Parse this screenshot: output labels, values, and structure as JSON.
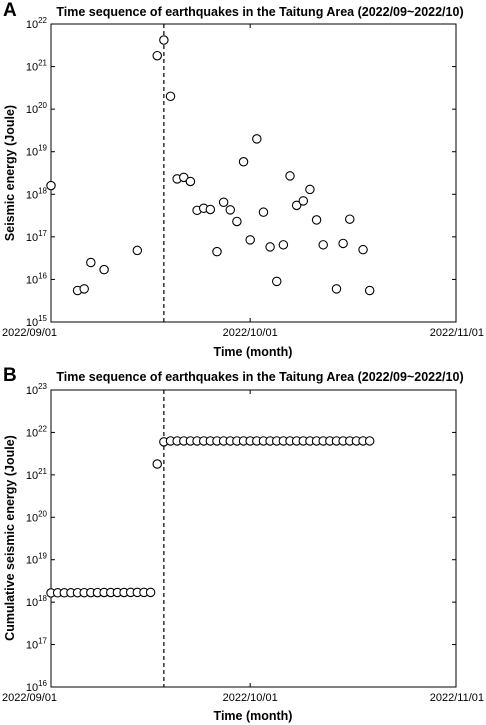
{
  "chart_data": [
    {
      "panel_label": "A",
      "type": "scatter",
      "title": "Time sequence of earthquakes in the Taitung Area (2022/09~2022/10)",
      "xlabel": "Time (month)",
      "ylabel": "Seismic energy (Joule)",
      "xlim": [
        "2022-09-01",
        "2022-11-01"
      ],
      "xticks": [
        "2022/09/01",
        "2022/10/01",
        "2022/11/01"
      ],
      "ylim": [
        15,
        22
      ],
      "yscale": "log",
      "yticks": [
        {
          "base": "10",
          "exp": "15"
        },
        {
          "base": "10",
          "exp": "16"
        },
        {
          "base": "10",
          "exp": "17"
        },
        {
          "base": "10",
          "exp": "18"
        },
        {
          "base": "10",
          "exp": "19"
        },
        {
          "base": "10",
          "exp": "20"
        },
        {
          "base": "10",
          "exp": "21"
        },
        {
          "base": "10",
          "exp": "22"
        }
      ],
      "vline_x": "2022-09-18",
      "grid": false,
      "points": [
        {
          "x": "2022-09-01",
          "y": 1.6e+18
        },
        {
          "x": "2022-09-05",
          "y": 5500000000000000.0
        },
        {
          "x": "2022-09-06",
          "y": 6000000000000000.0
        },
        {
          "x": "2022-09-07",
          "y": 2.5e+16
        },
        {
          "x": "2022-09-09",
          "y": 1.7e+16
        },
        {
          "x": "2022-09-14",
          "y": 4.8e+16
        },
        {
          "x": "2022-09-17",
          "y": 1.8e+21
        },
        {
          "x": "2022-09-18",
          "y": 4.2e+21
        },
        {
          "x": "2022-09-19",
          "y": 2e+20
        },
        {
          "x": "2022-09-20",
          "y": 2.3e+18
        },
        {
          "x": "2022-09-21",
          "y": 2.5e+18
        },
        {
          "x": "2022-09-22",
          "y": 2e+18
        },
        {
          "x": "2022-09-23",
          "y": 4.2e+17
        },
        {
          "x": "2022-09-24",
          "y": 4.7e+17
        },
        {
          "x": "2022-09-25",
          "y": 4.4e+17
        },
        {
          "x": "2022-09-26",
          "y": 4.5e+16
        },
        {
          "x": "2022-09-27",
          "y": 6.5e+17
        },
        {
          "x": "2022-09-28",
          "y": 4.3e+17
        },
        {
          "x": "2022-09-29",
          "y": 2.3e+17
        },
        {
          "x": "2022-09-30",
          "y": 5.8e+18
        },
        {
          "x": "2022-10-01",
          "y": 8.5e+16
        },
        {
          "x": "2022-10-02",
          "y": 2e+19
        },
        {
          "x": "2022-10-03",
          "y": 3.8e+17
        },
        {
          "x": "2022-10-04",
          "y": 5.8e+16
        },
        {
          "x": "2022-10-05",
          "y": 9000000000000000.0
        },
        {
          "x": "2022-10-06",
          "y": 6.5e+16
        },
        {
          "x": "2022-10-07",
          "y": 2.7e+18
        },
        {
          "x": "2022-10-08",
          "y": 5.5e+17
        },
        {
          "x": "2022-10-09",
          "y": 7e+17
        },
        {
          "x": "2022-10-10",
          "y": 1.3e+18
        },
        {
          "x": "2022-10-11",
          "y": 2.5e+17
        },
        {
          "x": "2022-10-12",
          "y": 6.5e+16
        },
        {
          "x": "2022-10-14",
          "y": 6000000000000000.0
        },
        {
          "x": "2022-10-15",
          "y": 7e+16
        },
        {
          "x": "2022-10-16",
          "y": 2.6e+17
        },
        {
          "x": "2022-10-18",
          "y": 5e+16
        },
        {
          "x": "2022-10-19",
          "y": 5500000000000000.0
        }
      ]
    },
    {
      "panel_label": "B",
      "type": "scatter",
      "title": "Time sequence of earthquakes in the Taitung Area (2022/09~2022/10)",
      "xlabel": "Time (month)",
      "ylabel": "Cumulative seismic energy (Joule)",
      "xlim": [
        "2022-09-01",
        "2022-11-01"
      ],
      "xticks": [
        "2022/09/01",
        "2022/10/01",
        "2022/11/01"
      ],
      "ylim": [
        16,
        23
      ],
      "yscale": "log",
      "yticks": [
        {
          "base": "10",
          "exp": "16"
        },
        {
          "base": "10",
          "exp": "17"
        },
        {
          "base": "10",
          "exp": "18"
        },
        {
          "base": "10",
          "exp": "19"
        },
        {
          "base": "10",
          "exp": "20"
        },
        {
          "base": "10",
          "exp": "21"
        },
        {
          "base": "10",
          "exp": "22"
        },
        {
          "base": "10",
          "exp": "23"
        }
      ],
      "vline_x": "2022-09-18",
      "grid": false,
      "points": [
        {
          "x": "2022-09-01",
          "y": 1.65e+18
        },
        {
          "x": "2022-09-02",
          "y": 1.66e+18
        },
        {
          "x": "2022-09-03",
          "y": 1.66e+18
        },
        {
          "x": "2022-09-04",
          "y": 1.66e+18
        },
        {
          "x": "2022-09-05",
          "y": 1.67e+18
        },
        {
          "x": "2022-09-06",
          "y": 1.67e+18
        },
        {
          "x": "2022-09-07",
          "y": 1.68e+18
        },
        {
          "x": "2022-09-08",
          "y": 1.68e+18
        },
        {
          "x": "2022-09-09",
          "y": 1.69e+18
        },
        {
          "x": "2022-09-10",
          "y": 1.69e+18
        },
        {
          "x": "2022-09-11",
          "y": 1.69e+18
        },
        {
          "x": "2022-09-12",
          "y": 1.69e+18
        },
        {
          "x": "2022-09-13",
          "y": 1.7e+18
        },
        {
          "x": "2022-09-14",
          "y": 1.7e+18
        },
        {
          "x": "2022-09-15",
          "y": 1.7e+18
        },
        {
          "x": "2022-09-16",
          "y": 1.7e+18
        },
        {
          "x": "2022-09-17",
          "y": 1.8e+21
        },
        {
          "x": "2022-09-18",
          "y": 6e+21
        },
        {
          "x": "2022-09-19",
          "y": 6.3e+21
        },
        {
          "x": "2022-09-20",
          "y": 6.3e+21
        },
        {
          "x": "2022-09-21",
          "y": 6.3e+21
        },
        {
          "x": "2022-09-22",
          "y": 6.3e+21
        },
        {
          "x": "2022-09-23",
          "y": 6.3e+21
        },
        {
          "x": "2022-09-24",
          "y": 6.3e+21
        },
        {
          "x": "2022-09-25",
          "y": 6.3e+21
        },
        {
          "x": "2022-09-26",
          "y": 6.3e+21
        },
        {
          "x": "2022-09-27",
          "y": 6.3e+21
        },
        {
          "x": "2022-09-28",
          "y": 6.3e+21
        },
        {
          "x": "2022-09-29",
          "y": 6.3e+21
        },
        {
          "x": "2022-09-30",
          "y": 6.3e+21
        },
        {
          "x": "2022-10-01",
          "y": 6.3e+21
        },
        {
          "x": "2022-10-02",
          "y": 6.3e+21
        },
        {
          "x": "2022-10-03",
          "y": 6.3e+21
        },
        {
          "x": "2022-10-04",
          "y": 6.3e+21
        },
        {
          "x": "2022-10-05",
          "y": 6.3e+21
        },
        {
          "x": "2022-10-06",
          "y": 6.3e+21
        },
        {
          "x": "2022-10-07",
          "y": 6.3e+21
        },
        {
          "x": "2022-10-08",
          "y": 6.3e+21
        },
        {
          "x": "2022-10-09",
          "y": 6.3e+21
        },
        {
          "x": "2022-10-10",
          "y": 6.3e+21
        },
        {
          "x": "2022-10-11",
          "y": 6.3e+21
        },
        {
          "x": "2022-10-12",
          "y": 6.3e+21
        },
        {
          "x": "2022-10-13",
          "y": 6.3e+21
        },
        {
          "x": "2022-10-14",
          "y": 6.3e+21
        },
        {
          "x": "2022-10-15",
          "y": 6.3e+21
        },
        {
          "x": "2022-10-16",
          "y": 6.3e+21
        },
        {
          "x": "2022-10-17",
          "y": 6.3e+21
        },
        {
          "x": "2022-10-18",
          "y": 6.3e+21
        },
        {
          "x": "2022-10-19",
          "y": 6.3e+21
        }
      ]
    }
  ]
}
